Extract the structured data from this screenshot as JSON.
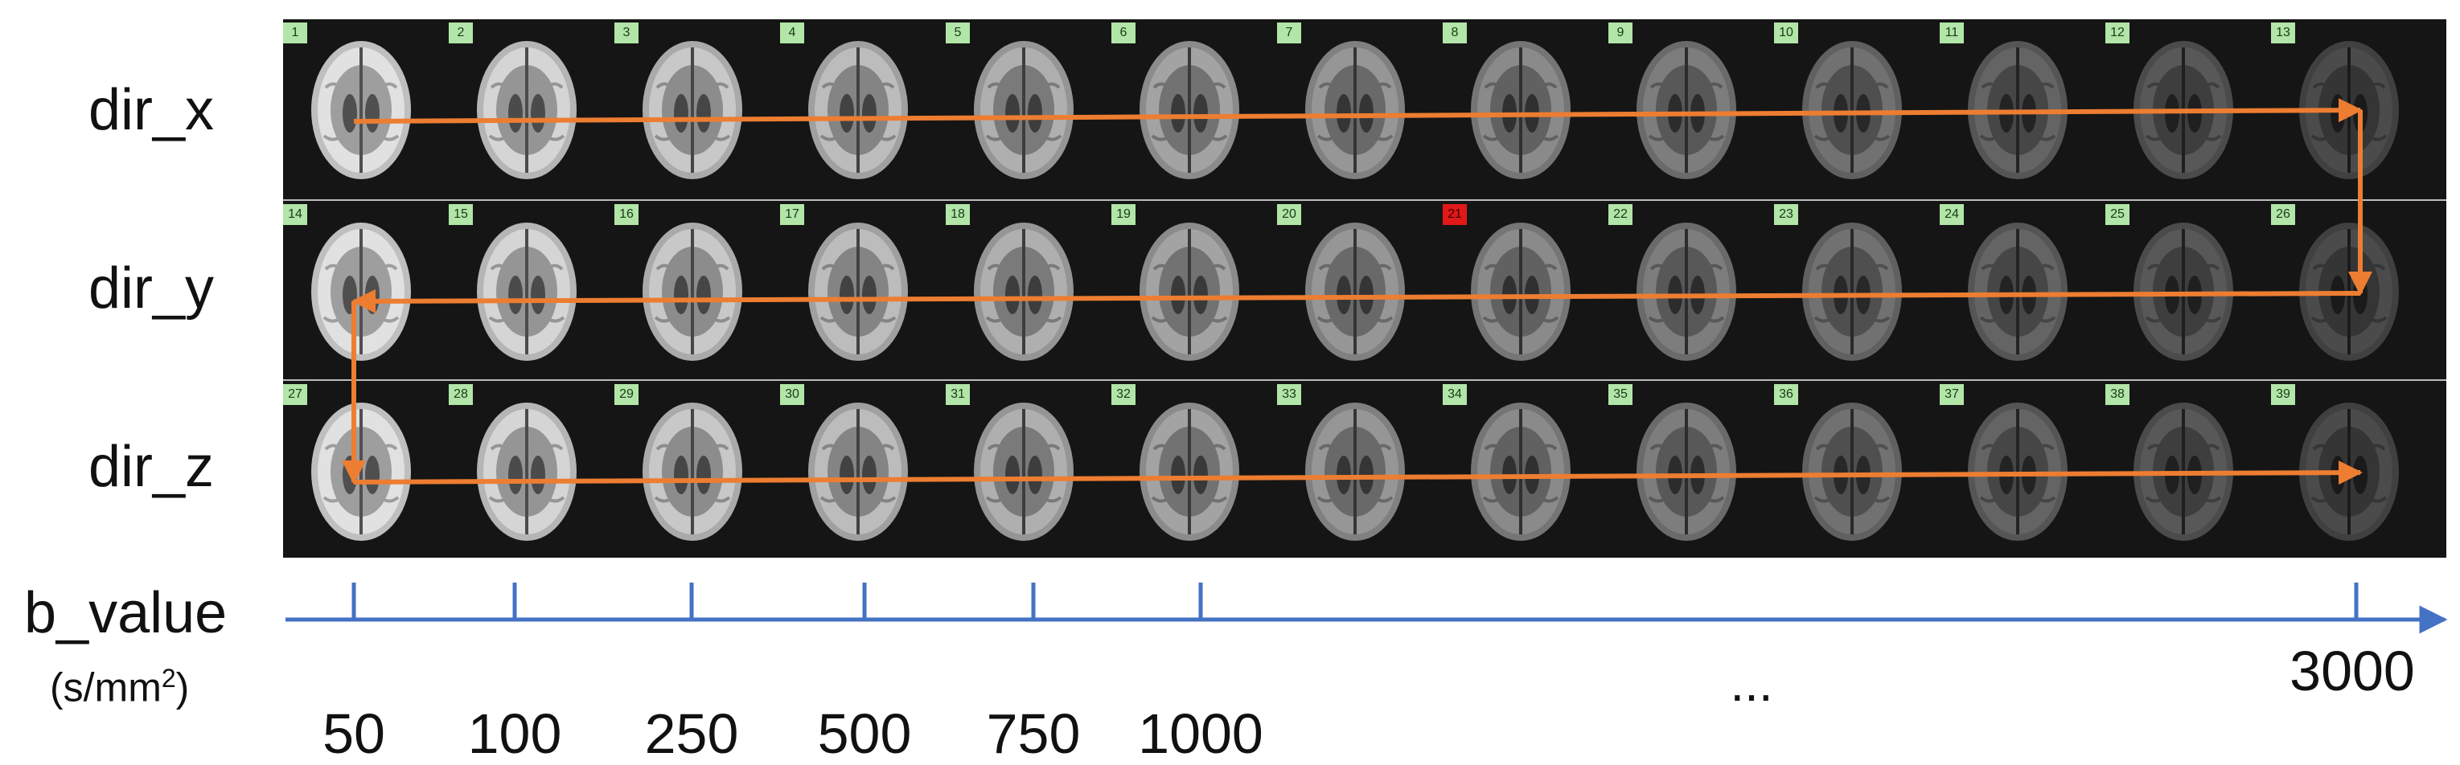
{
  "rows": [
    {
      "label": "dir_x",
      "indices": [
        "1",
        "2",
        "3",
        "4",
        "5",
        "6",
        "7",
        "8",
        "9",
        "10",
        "11",
        "12",
        "13"
      ]
    },
    {
      "label": "dir_y",
      "indices": [
        "14",
        "15",
        "16",
        "17",
        "18",
        "19",
        "20",
        "21",
        "22",
        "23",
        "24",
        "25",
        "26"
      ]
    },
    {
      "label": "dir_z",
      "indices": [
        "27",
        "28",
        "29",
        "30",
        "31",
        "32",
        "33",
        "34",
        "35",
        "36",
        "37",
        "38",
        "39"
      ]
    }
  ],
  "flagged_index": "21",
  "axis": {
    "label": "b_value",
    "unit_prefix": "(s/mm",
    "unit_power": "2",
    "unit_suffix": ")",
    "ticks": [
      "50",
      "100",
      "250",
      "500",
      "750",
      "1000",
      "3000"
    ],
    "ellipsis": "..."
  },
  "colors": {
    "arrow": "#ed7d31",
    "axis": "#4472c4",
    "index_label": "#b2e5a8",
    "index_flag": "#e01818",
    "panel": "#151515"
  }
}
